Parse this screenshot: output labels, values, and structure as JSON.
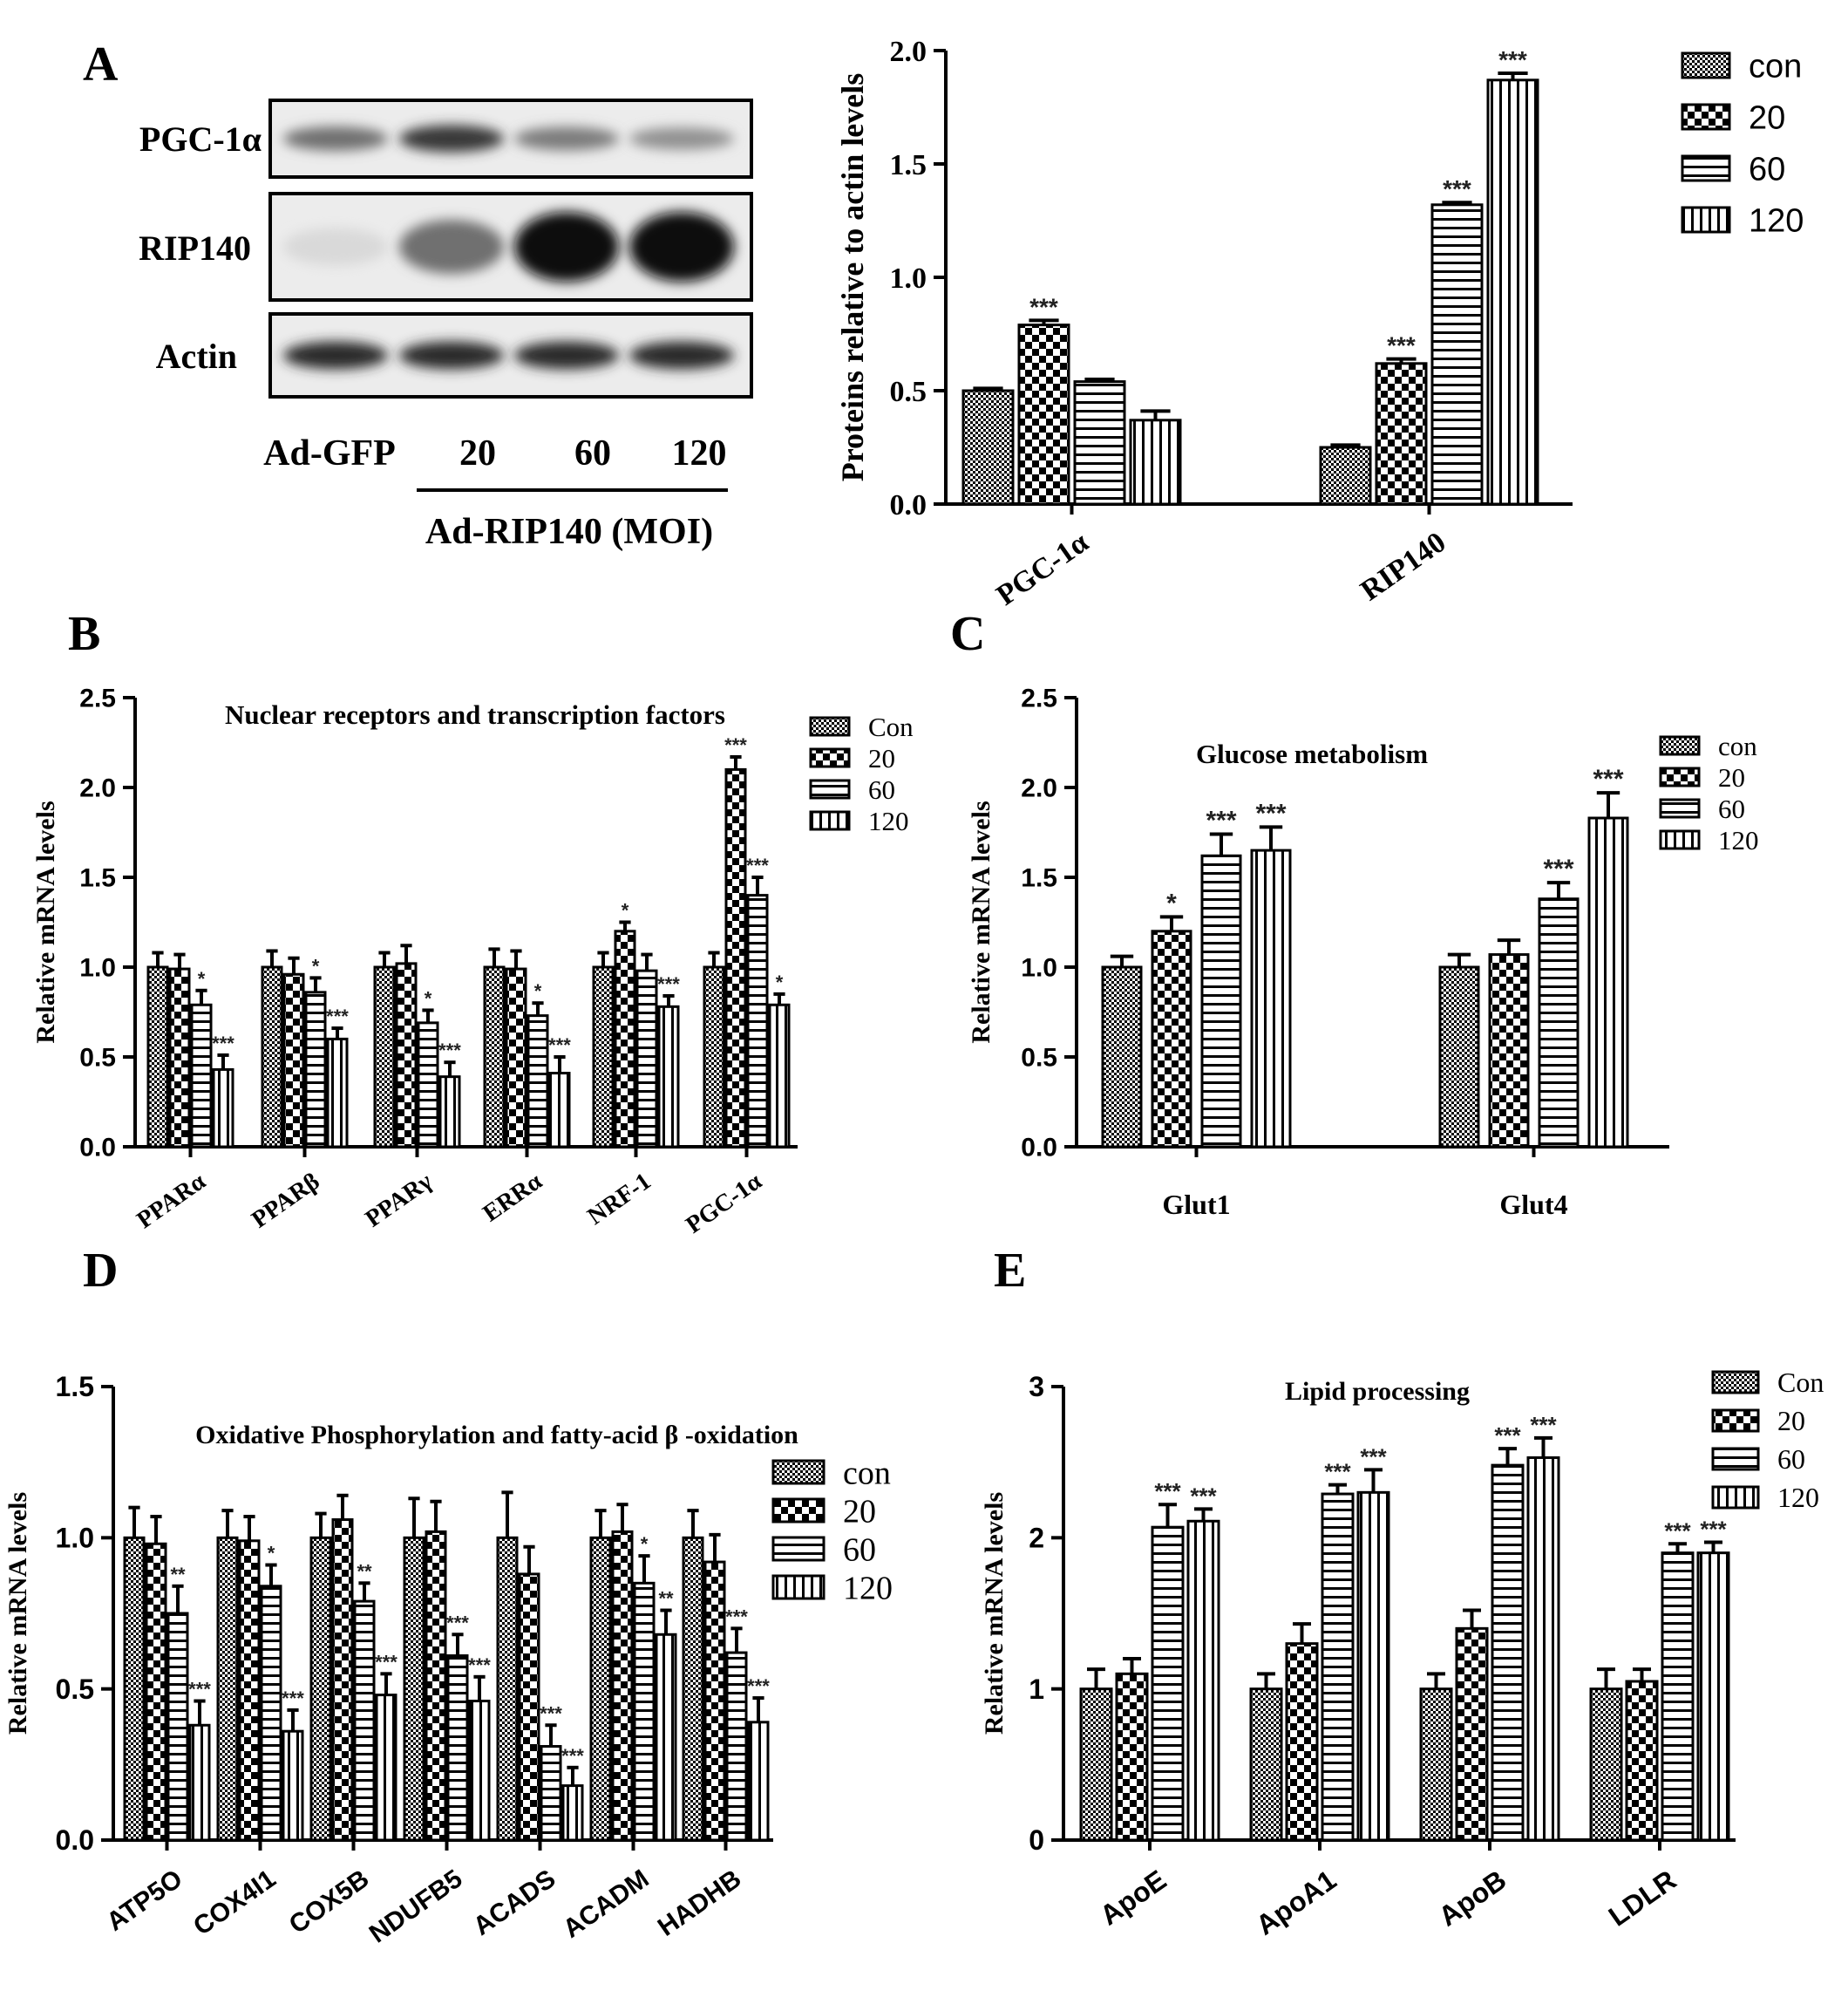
{
  "figure": {
    "panel_letters": [
      "A",
      "B",
      "C",
      "D",
      "E"
    ]
  },
  "blot": {
    "rows": [
      {
        "label": "PGC-1α",
        "bands": [
          0.55,
          0.8,
          0.5,
          0.4
        ]
      },
      {
        "label": "RIP140",
        "bands": [
          0.08,
          0.55,
          1.0,
          1.0
        ]
      },
      {
        "label": "Actin",
        "bands": [
          0.85,
          0.85,
          0.85,
          0.85
        ]
      }
    ],
    "lanes": [
      "Ad-GFP",
      "20",
      "60",
      "120"
    ],
    "group_label": "Ad-RIP140 (MOI)"
  },
  "colors": {
    "ink": "#000000",
    "background": "#ffffff",
    "band": "#111111"
  },
  "chart_data": [
    {
      "id": "A",
      "type": "bar",
      "title": "",
      "ylabel": "Proteins relative to actin levels",
      "ylim": [
        0,
        2.0
      ],
      "yticks": [
        "0.0",
        "0.5",
        "1.0",
        "1.5",
        "2.0"
      ],
      "categories": [
        "PGC-1α",
        "RIP140"
      ],
      "series": [
        {
          "name": "con",
          "values": [
            0.5,
            0.25
          ]
        },
        {
          "name": "20",
          "values": [
            0.79,
            0.62
          ]
        },
        {
          "name": "60",
          "values": [
            0.54,
            1.32
          ]
        },
        {
          "name": "120",
          "values": [
            0.37,
            1.87
          ]
        }
      ],
      "errors": [
        [
          0.01,
          0.02,
          0.01,
          0.04
        ],
        [
          0.01,
          0.02,
          0.01,
          0.03
        ]
      ],
      "stars": [
        [
          "",
          "***",
          "",
          ""
        ],
        [
          "",
          "***",
          "***",
          "***"
        ]
      ]
    },
    {
      "id": "B",
      "type": "bar",
      "title": "Nuclear receptors and transcription factors",
      "ylabel": "Relative mRNA levels",
      "ylim": [
        0,
        2.5
      ],
      "yticks": [
        "0.0",
        "0.5",
        "1.0",
        "1.5",
        "2.0",
        "2.5"
      ],
      "categories": [
        "PPARα",
        "PPARβ",
        "PPARγ",
        "ERRα",
        "NRF-1",
        "PGC-1α"
      ],
      "series": [
        {
          "name": "Con",
          "values": [
            1.0,
            1.0,
            1.0,
            1.0,
            1.0,
            1.0
          ]
        },
        {
          "name": "20",
          "values": [
            0.99,
            0.96,
            1.02,
            0.99,
            1.2,
            2.1
          ]
        },
        {
          "name": "60",
          "values": [
            0.79,
            0.86,
            0.69,
            0.73,
            0.98,
            1.4
          ]
        },
        {
          "name": "120",
          "values": [
            0.43,
            0.6,
            0.39,
            0.41,
            0.78,
            0.79
          ]
        }
      ],
      "errors": [
        [
          0.08,
          0.08,
          0.08,
          0.08
        ],
        [
          0.09,
          0.09,
          0.08,
          0.06
        ],
        [
          0.08,
          0.1,
          0.07,
          0.08
        ],
        [
          0.1,
          0.1,
          0.07,
          0.09
        ],
        [
          0.08,
          0.05,
          0.09,
          0.06
        ],
        [
          0.08,
          0.07,
          0.1,
          0.06
        ]
      ],
      "stars": [
        [
          "",
          "",
          "*",
          "***"
        ],
        [
          "",
          "",
          "*",
          "***"
        ],
        [
          "",
          "",
          "*",
          "***"
        ],
        [
          "",
          "",
          "*",
          "***"
        ],
        [
          "",
          "*",
          "",
          "***"
        ],
        [
          "",
          "***",
          "***",
          "*"
        ]
      ]
    },
    {
      "id": "C",
      "type": "bar",
      "title": "Glucose metabolism",
      "ylabel": "Relative mRNA levels",
      "ylim": [
        0,
        2.5
      ],
      "yticks": [
        "0.0",
        "0.5",
        "1.0",
        "1.5",
        "2.0",
        "2.5"
      ],
      "categories": [
        "Glut1",
        "Glut4"
      ],
      "series": [
        {
          "name": "con",
          "values": [
            1.0,
            1.0
          ]
        },
        {
          "name": "20",
          "values": [
            1.2,
            1.07
          ]
        },
        {
          "name": "60",
          "values": [
            1.62,
            1.38
          ]
        },
        {
          "name": "120",
          "values": [
            1.65,
            1.83
          ]
        }
      ],
      "errors": [
        [
          0.06,
          0.08,
          0.12,
          0.13
        ],
        [
          0.07,
          0.08,
          0.09,
          0.14
        ]
      ],
      "stars": [
        [
          "",
          "*",
          "***",
          "***"
        ],
        [
          "",
          "",
          "***",
          "***"
        ]
      ]
    },
    {
      "id": "D",
      "type": "bar",
      "title": "Oxidative Phosphorylation and fatty-acid β -oxidation",
      "ylabel": "Relative mRNA levels",
      "ylim": [
        0,
        1.5
      ],
      "yticks": [
        "0.0",
        "0.5",
        "1.0",
        "1.5"
      ],
      "categories": [
        "ATP5O",
        "COX4I1",
        "COX5B",
        "NDUFB5",
        "ACADS",
        "ACADM",
        "HADHB"
      ],
      "series": [
        {
          "name": "con",
          "values": [
            1.0,
            1.0,
            1.0,
            1.0,
            1.0,
            1.0,
            1.0
          ]
        },
        {
          "name": "20",
          "values": [
            0.98,
            0.99,
            1.06,
            1.02,
            0.88,
            1.02,
            0.92
          ]
        },
        {
          "name": "60",
          "values": [
            0.75,
            0.84,
            0.79,
            0.61,
            0.31,
            0.85,
            0.62
          ]
        },
        {
          "name": "120",
          "values": [
            0.38,
            0.36,
            0.48,
            0.46,
            0.18,
            0.68,
            0.39
          ]
        }
      ],
      "errors": [
        [
          0.1,
          0.09,
          0.09,
          0.08
        ],
        [
          0.09,
          0.08,
          0.07,
          0.07
        ],
        [
          0.08,
          0.08,
          0.06,
          0.07
        ],
        [
          0.13,
          0.1,
          0.07,
          0.08
        ],
        [
          0.15,
          0.09,
          0.07,
          0.06
        ],
        [
          0.09,
          0.09,
          0.09,
          0.08
        ],
        [
          0.09,
          0.09,
          0.08,
          0.08
        ]
      ],
      "stars": [
        [
          "",
          "",
          "**",
          "***"
        ],
        [
          "",
          "",
          "*",
          "***"
        ],
        [
          "",
          "",
          "**",
          "***"
        ],
        [
          "",
          "",
          "***",
          "***"
        ],
        [
          "",
          "",
          "***",
          "***"
        ],
        [
          "",
          "",
          "*",
          "**"
        ],
        [
          "",
          "",
          "***",
          "***"
        ]
      ]
    },
    {
      "id": "E",
      "type": "bar",
      "title": "Lipid processing",
      "ylabel": "Relative mRNA levels",
      "ylim": [
        0,
        3
      ],
      "yticks": [
        "0",
        "1",
        "2",
        "3"
      ],
      "categories": [
        "ApoE",
        "ApoA1",
        "ApoB",
        "LDLR"
      ],
      "series": [
        {
          "name": "Con",
          "values": [
            1.0,
            1.0,
            1.0,
            1.0
          ]
        },
        {
          "name": "20",
          "values": [
            1.1,
            1.3,
            1.4,
            1.05
          ]
        },
        {
          "name": "60",
          "values": [
            2.07,
            2.29,
            2.48,
            1.9
          ]
        },
        {
          "name": "120",
          "values": [
            2.11,
            2.3,
            2.53,
            1.9
          ]
        }
      ],
      "errors": [
        [
          0.13,
          0.1,
          0.15,
          0.08
        ],
        [
          0.1,
          0.13,
          0.06,
          0.15
        ],
        [
          0.1,
          0.12,
          0.11,
          0.13
        ],
        [
          0.13,
          0.08,
          0.06,
          0.07
        ]
      ],
      "stars": [
        [
          "",
          "",
          "***",
          "***"
        ],
        [
          "",
          "",
          "***",
          "***"
        ],
        [
          "",
          "",
          "***",
          "***"
        ],
        [
          "",
          "",
          "***",
          "***"
        ]
      ]
    }
  ]
}
